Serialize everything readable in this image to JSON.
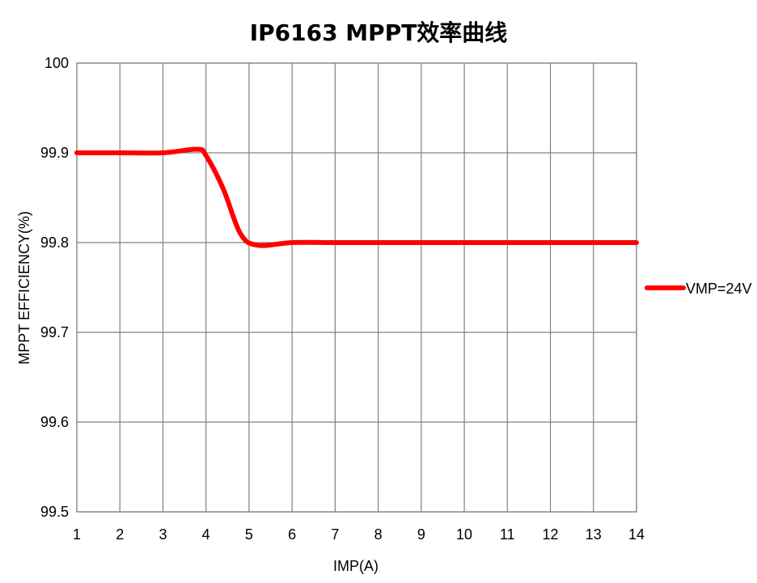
{
  "chart_data": {
    "type": "line",
    "title": "IP6163 MPPT效率曲线",
    "xlabel": "IMP(A)",
    "ylabel": "MPPT EFFICIENCY(%)",
    "xlim": [
      1,
      14
    ],
    "ylim": [
      99.5,
      100
    ],
    "x_ticks": [
      "1",
      "2",
      "3",
      "4",
      "5",
      "6",
      "7",
      "8",
      "9",
      "10",
      "11",
      "12",
      "13",
      "14"
    ],
    "y_ticks": [
      "100",
      "99.9",
      "99.8",
      "99.7",
      "99.6",
      "99.5"
    ],
    "grid": true,
    "legend_position": "right",
    "series": [
      {
        "name": "VMP=24V",
        "color": "#ff0000",
        "x": [
          1,
          2,
          3,
          3.8,
          4,
          4.4,
          4.8,
          5.2,
          6,
          7,
          8,
          9,
          10,
          11,
          12,
          13,
          14
        ],
        "values": [
          99.9,
          99.9,
          99.9,
          99.904,
          99.897,
          99.86,
          99.81,
          99.797,
          99.8,
          99.8,
          99.8,
          99.8,
          99.8,
          99.8,
          99.8,
          99.8,
          99.8
        ]
      }
    ]
  }
}
